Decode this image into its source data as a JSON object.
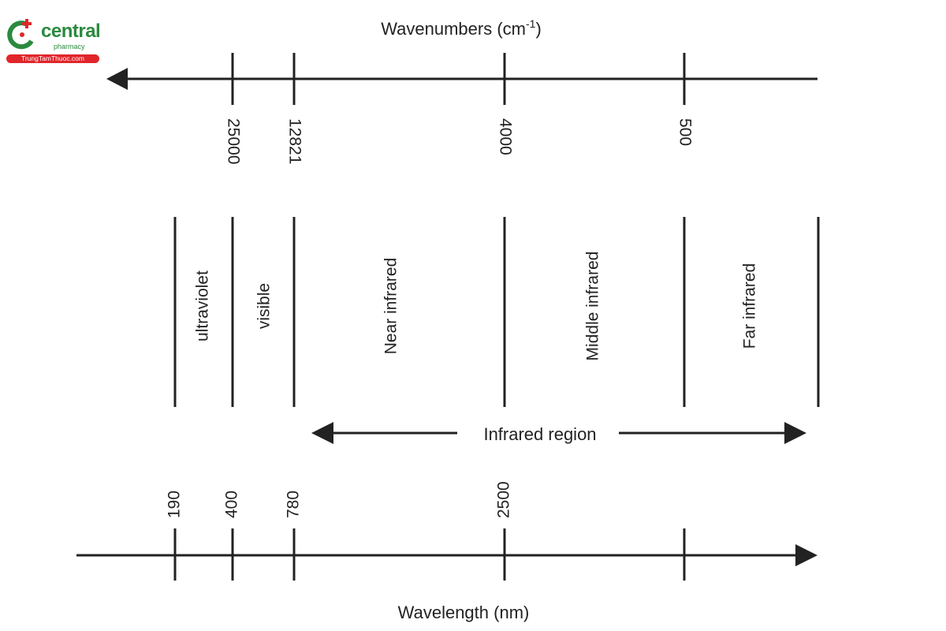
{
  "logo": {
    "word": "central",
    "sub": "pharmacy",
    "site": "TrungTamThuoc.com",
    "colors": {
      "green": "#2a8a3e",
      "red": "#e0262b"
    }
  },
  "wavenumber_axis": {
    "title": "Wavenumbers (cm",
    "title_sup": "-1",
    "title_end": ")",
    "direction": "left",
    "ticks": [
      "25000",
      "12821",
      "4000",
      "500"
    ]
  },
  "regions": [
    "ultraviolet",
    "visible",
    "Near infrared",
    "Middle infrared",
    "Far infrared"
  ],
  "infrared_span": {
    "label": "Infrared region",
    "direction": "both"
  },
  "wavelength_axis": {
    "title": "Wavelength (nm)",
    "direction": "right",
    "ticks": [
      "190",
      "400",
      "780",
      "2500",
      ""
    ]
  },
  "line_color": "#222222"
}
